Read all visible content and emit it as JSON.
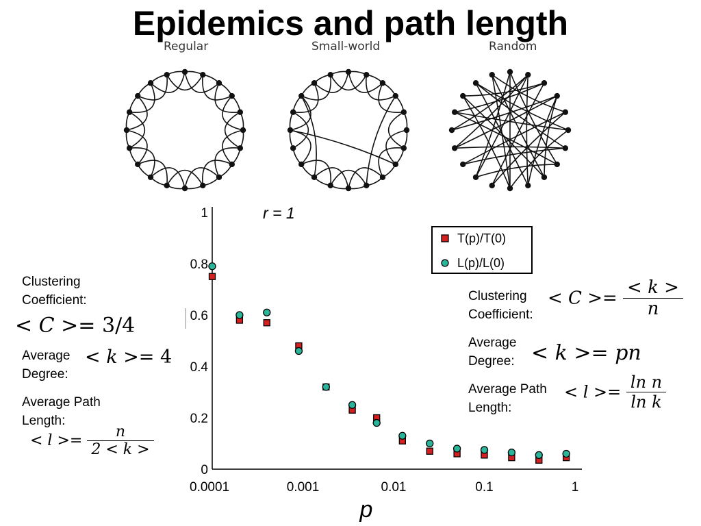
{
  "slide": {
    "title": "Epidemics and path length"
  },
  "networks": {
    "regular_label": "Regular",
    "small_world_label": "Small-world",
    "random_label": "Random"
  },
  "left_panel": {
    "clustering_label_1": "Clustering",
    "clustering_label_2": "Coefficient:",
    "clustering_lhs": "< C >= ",
    "clustering_value": "3/4",
    "degree_label_1": "Average",
    "degree_label_2": "Degree:",
    "degree_lhs": "< k >= ",
    "degree_value": "4",
    "path_label_1": "Average Path",
    "path_label_2": "Length:",
    "path_lhs": "< l >= ",
    "path_num": "n",
    "path_den": "2 < k >"
  },
  "right_panel": {
    "clustering_label_1": "Clustering",
    "clustering_label_2": "Coefficient:",
    "clustering_lhs": "< C >= ",
    "clustering_num": "< k >",
    "clustering_den": "n",
    "degree_label_1": "Average",
    "degree_label_2": "Degree:",
    "degree_lhs": "< k >= ",
    "degree_value": "pn",
    "path_label_1": "Average Path",
    "path_label_2": "Length:",
    "path_lhs": "< l >= ",
    "path_num": "ln n",
    "path_den": "ln k"
  },
  "chart_data": {
    "type": "scatter",
    "annotation": "r = 1",
    "xlabel": "p",
    "x_scale": "log",
    "xlim": [
      0.0001,
      1
    ],
    "ylim": [
      0,
      1
    ],
    "x_ticks": [
      "0.0001",
      "0.001",
      "0.01",
      "0.1",
      "1"
    ],
    "y_ticks": [
      "0",
      "0.2",
      "0.4",
      "0.6",
      "0.8",
      "1"
    ],
    "legend_position": "top-right",
    "series": [
      {
        "name": "T(p)/T(0)",
        "marker": "square",
        "color": "#d42020",
        "x": [
          0.0001,
          0.0002,
          0.0004,
          0.0009,
          0.0018,
          0.0035,
          0.0065,
          0.0125,
          0.025,
          0.05,
          0.1,
          0.2,
          0.4,
          0.8
        ],
        "y": [
          0.75,
          0.58,
          0.57,
          0.48,
          0.32,
          0.23,
          0.2,
          0.11,
          0.07,
          0.06,
          0.055,
          0.045,
          0.035,
          0.045
        ]
      },
      {
        "name": "L(p)/L(0)",
        "marker": "circle",
        "color": "#2ab59b",
        "x": [
          0.0001,
          0.0002,
          0.0004,
          0.0009,
          0.0018,
          0.0035,
          0.0065,
          0.0125,
          0.025,
          0.05,
          0.1,
          0.2,
          0.4,
          0.8
        ],
        "y": [
          0.79,
          0.6,
          0.61,
          0.46,
          0.32,
          0.25,
          0.18,
          0.13,
          0.1,
          0.08,
          0.075,
          0.065,
          0.055,
          0.06
        ]
      }
    ]
  }
}
